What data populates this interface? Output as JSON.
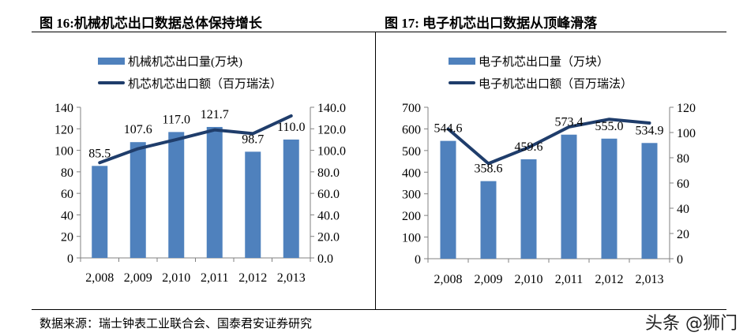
{
  "charts_header": [
    {
      "title": "图 16:机械机芯出口数据总体保持增长"
    },
    {
      "title": "图 17:  电子机芯出口数据从顶峰滑落"
    }
  ],
  "footer": {
    "source": "数据来源：瑞士钟表工业联合会、国泰君安证券研究",
    "watermark": "头条 @狮门"
  },
  "colors": {
    "bar": "#4f81bd",
    "line": "#1f3d6b",
    "axis": "#808080"
  },
  "chart_data": [
    {
      "type": "bar+line",
      "title": "图 16:机械机芯出口数据总体保持增长",
      "categories": [
        "2,008",
        "2,009",
        "2,010",
        "2,011",
        "2,012",
        "2,013"
      ],
      "series": [
        {
          "name": "机械机芯出口量(万块)",
          "type": "bar",
          "axis": "left",
          "values": [
            85.5,
            107.6,
            117.0,
            121.7,
            98.7,
            110.0
          ],
          "labels": [
            "85.5",
            "107.6",
            "117.0",
            "121.7",
            "98.7",
            "110.0"
          ]
        },
        {
          "name": "机芯机芯出口额（百万瑞法）",
          "type": "line",
          "axis": "right",
          "values": [
            88.5,
            101.5,
            110,
            119,
            115.5,
            132
          ]
        }
      ],
      "ylim_left": [
        0,
        140
      ],
      "yticks_left": [
        "0",
        "20",
        "40",
        "60",
        "80",
        "100",
        "120",
        "140"
      ],
      "ylim_right": [
        0,
        140
      ],
      "yticks_right": [
        "0.0",
        "20.0",
        "40.0",
        "60.0",
        "80.0",
        "100.0",
        "120.0",
        "140.0"
      ],
      "grid": false,
      "legend": "top"
    },
    {
      "type": "bar+line",
      "title": "图 17:  电子机芯出口数据从顶峰滑落",
      "categories": [
        "2,008",
        "2,009",
        "2,010",
        "2,011",
        "2,012",
        "2,013"
      ],
      "series": [
        {
          "name": "电子机芯出口量（万块）",
          "type": "bar",
          "axis": "left",
          "values": [
            544.6,
            358.6,
            459.6,
            573.4,
            555.0,
            534.9
          ],
          "labels": [
            "544.6",
            "358.6",
            "459.6",
            "573.4",
            "555.0",
            "534.9"
          ]
        },
        {
          "name": "电子机芯出口额（百万瑞法）",
          "type": "line",
          "axis": "right",
          "values": [
            102.8,
            75.4,
            88.2,
            104.4,
            110.5,
            107.5
          ]
        }
      ],
      "ylim_left": [
        0,
        700
      ],
      "yticks_left": [
        "0",
        "100",
        "200",
        "300",
        "400",
        "500",
        "600",
        "700"
      ],
      "ylim_right": [
        0,
        120
      ],
      "yticks_right": [
        "0",
        "20",
        "40",
        "60",
        "80",
        "100",
        "120"
      ],
      "grid": false,
      "legend": "top"
    }
  ]
}
